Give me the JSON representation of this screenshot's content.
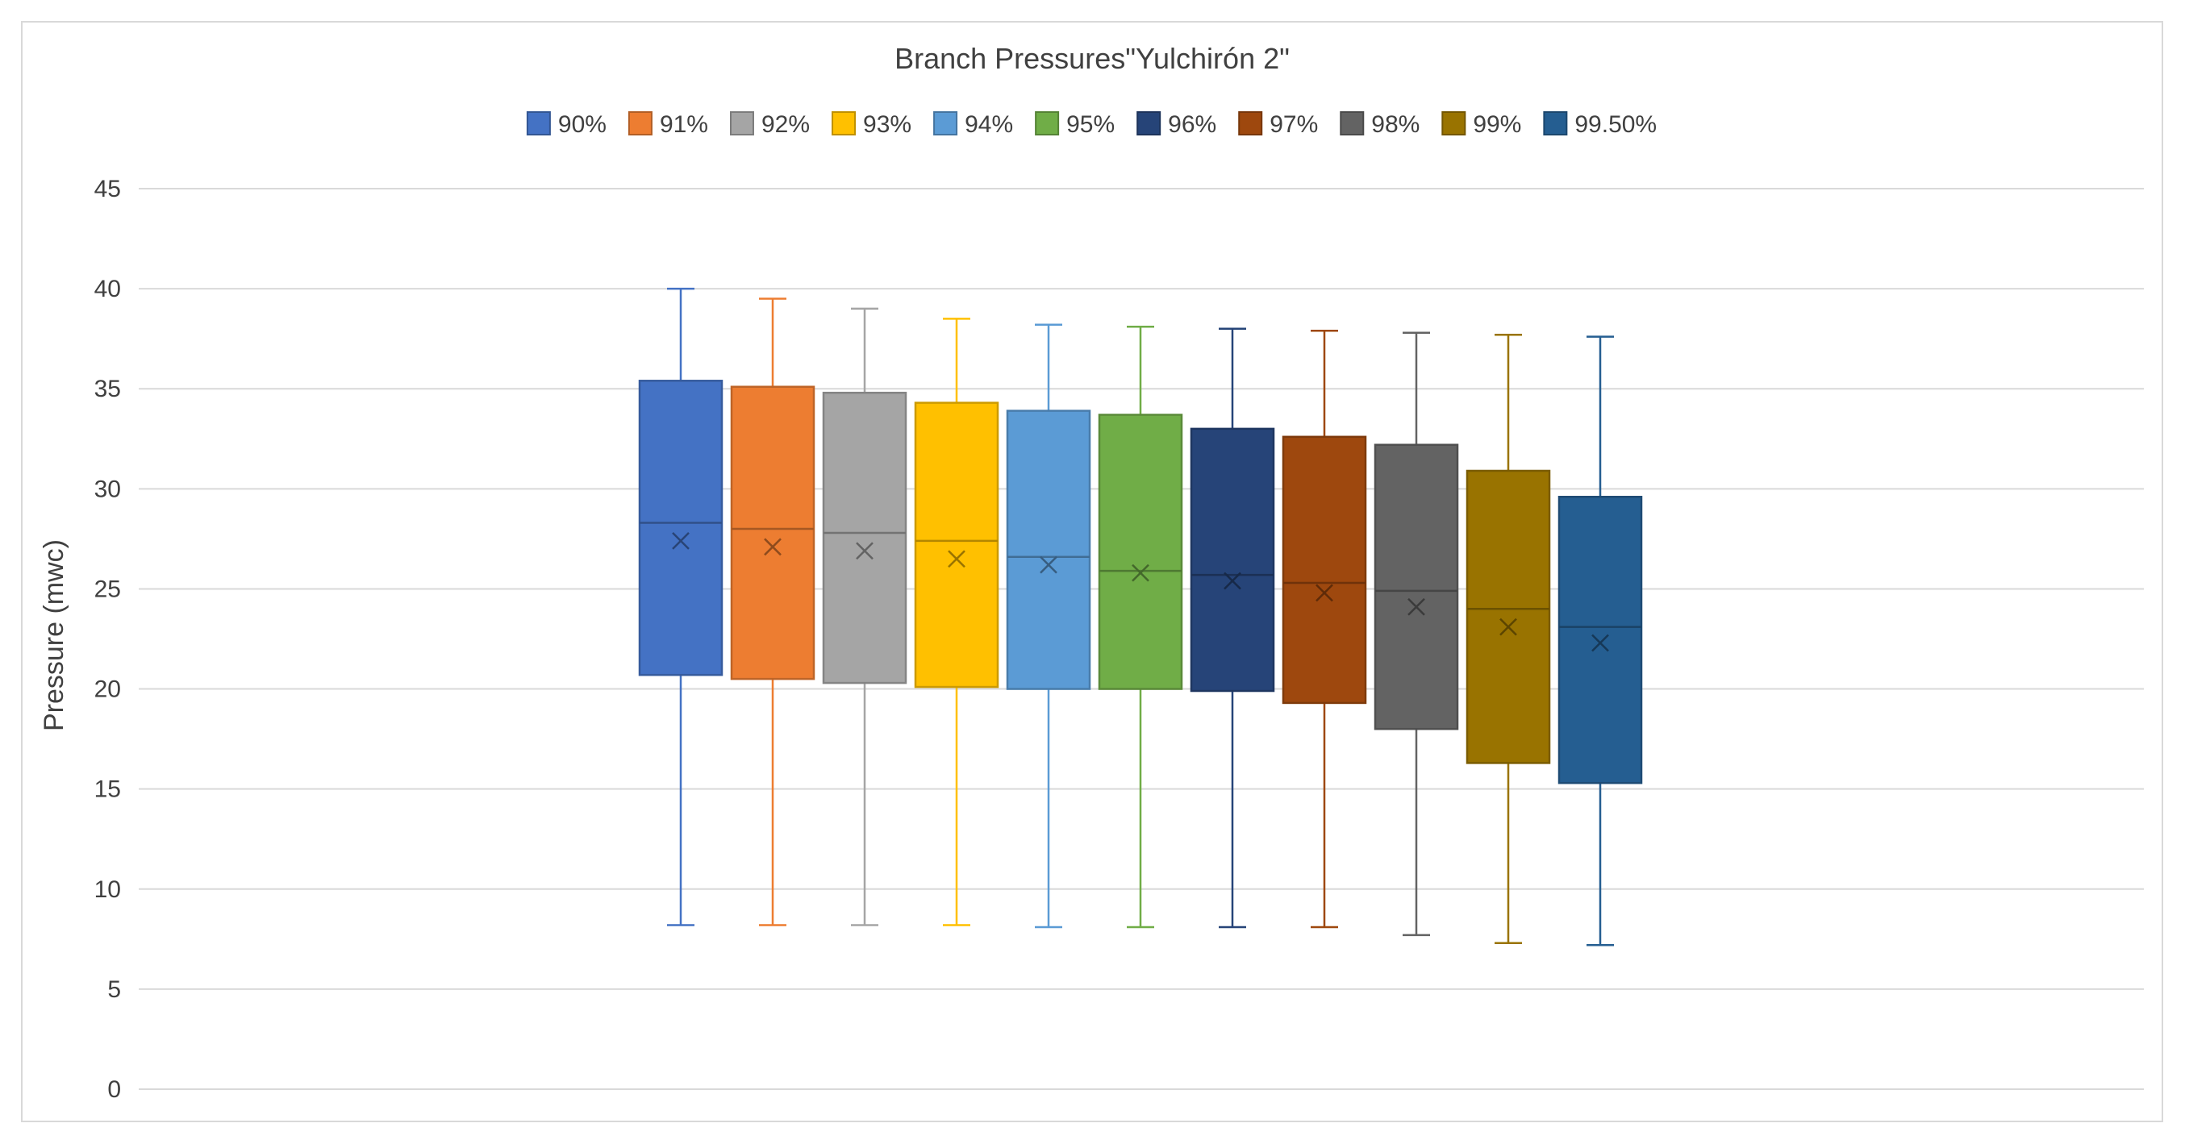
{
  "chart_data": {
    "type": "box",
    "title": "Branch Pressures\"Yulchirón 2\"",
    "ylabel": "Pressure (mwc)",
    "xlabel": "",
    "ylim": [
      0,
      45
    ],
    "yticks": [
      0,
      5,
      10,
      15,
      20,
      25,
      30,
      35,
      40,
      45
    ],
    "grid": true,
    "legend": "top",
    "series": [
      {
        "name": "90%",
        "color": "#4472C4",
        "min": 8.2,
        "q1": 20.7,
        "median": 28.3,
        "mean": 27.4,
        "q3": 35.4,
        "max": 40.0
      },
      {
        "name": "91%",
        "color": "#ED7D31",
        "min": 8.2,
        "q1": 20.5,
        "median": 28.0,
        "mean": 27.1,
        "q3": 35.1,
        "max": 39.5
      },
      {
        "name": "92%",
        "color": "#A5A5A5",
        "min": 8.2,
        "q1": 20.3,
        "median": 27.8,
        "mean": 26.9,
        "q3": 34.8,
        "max": 39.0
      },
      {
        "name": "93%",
        "color": "#FFC000",
        "min": 8.2,
        "q1": 20.1,
        "median": 27.4,
        "mean": 26.5,
        "q3": 34.3,
        "max": 38.5
      },
      {
        "name": "94%",
        "color": "#5B9BD5",
        "min": 8.1,
        "q1": 20.0,
        "median": 26.6,
        "mean": 26.2,
        "q3": 33.9,
        "max": 38.2
      },
      {
        "name": "95%",
        "color": "#70AD47",
        "min": 8.1,
        "q1": 20.0,
        "median": 25.9,
        "mean": 25.8,
        "q3": 33.7,
        "max": 38.1
      },
      {
        "name": "96%",
        "color": "#264478",
        "min": 8.1,
        "q1": 19.9,
        "median": 25.7,
        "mean": 25.4,
        "q3": 33.0,
        "max": 38.0
      },
      {
        "name": "97%",
        "color": "#9E480E",
        "min": 8.1,
        "q1": 19.3,
        "median": 25.3,
        "mean": 24.8,
        "q3": 32.6,
        "max": 37.9
      },
      {
        "name": "98%",
        "color": "#636363",
        "min": 7.7,
        "q1": 18.0,
        "median": 24.9,
        "mean": 24.1,
        "q3": 32.2,
        "max": 37.8
      },
      {
        "name": "99%",
        "color": "#997300",
        "min": 7.3,
        "q1": 16.3,
        "median": 24.0,
        "mean": 23.1,
        "q3": 30.9,
        "max": 37.7
      },
      {
        "name": "99.50%",
        "color": "#255E91",
        "min": 7.2,
        "q1": 15.3,
        "median": 23.1,
        "mean": 22.3,
        "q3": 29.6,
        "max": 37.6
      }
    ]
  }
}
